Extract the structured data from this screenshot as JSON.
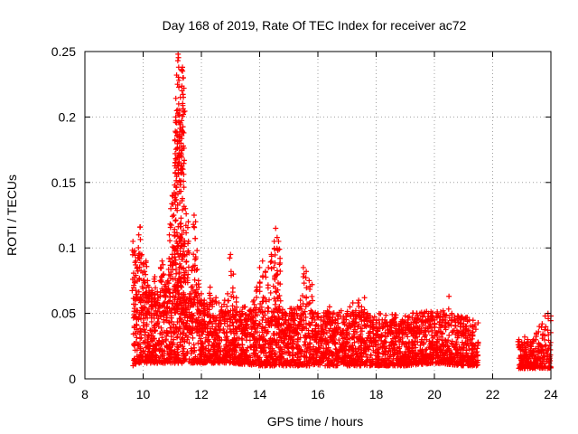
{
  "chart_data": {
    "type": "scatter",
    "title": "Day 168 of 2019, Rate Of TEC Index for receiver ac72",
    "xlabel": "GPS time / hours",
    "ylabel": "ROTI / TECUs",
    "xlim": [
      8,
      24
    ],
    "ylim": [
      0,
      0.25
    ],
    "xticks": [
      8,
      10,
      12,
      14,
      16,
      18,
      20,
      22,
      24
    ],
    "yticks": [
      0,
      0.05,
      0.1,
      0.15,
      0.2,
      0.25
    ],
    "ytick_labels": [
      "0",
      "0.05",
      "0.1",
      "0.15",
      "0.2",
      "0.25"
    ],
    "grid": true,
    "marker": "plus",
    "series": [
      {
        "name": "ROTI",
        "color": "#ff0000",
        "x": [
          9.65,
          9.7,
          9.75,
          9.8,
          9.85,
          9.9,
          9.95,
          10.0,
          10.05,
          10.1,
          10.15,
          10.2,
          10.3,
          10.4,
          10.5,
          10.6,
          10.65,
          10.7,
          10.75,
          10.8,
          10.85,
          10.9,
          10.95,
          11.0,
          11.05,
          11.08,
          11.1,
          11.12,
          11.15,
          11.18,
          11.2,
          11.22,
          11.25,
          11.28,
          11.3,
          11.32,
          11.35,
          11.38,
          11.4,
          11.45,
          11.5,
          11.55,
          11.6,
          11.65,
          11.7,
          11.75,
          11.8,
          11.85,
          11.9,
          11.95,
          12.0,
          12.1,
          12.2,
          12.3,
          12.4,
          12.5,
          12.6,
          12.7,
          12.8,
          12.9,
          13.0,
          13.1,
          13.2,
          13.3,
          13.4,
          13.5,
          13.6,
          13.7,
          13.8,
          13.9,
          14.0,
          14.1,
          14.2,
          14.3,
          14.4,
          14.5,
          14.55,
          14.6,
          14.65,
          14.7,
          14.8,
          14.9,
          15.0,
          15.1,
          15.2,
          15.3,
          15.4,
          15.5,
          15.6,
          15.7,
          15.8,
          15.9,
          16.0,
          16.1,
          16.2,
          16.3,
          16.4,
          16.5,
          16.6,
          16.7,
          16.8,
          16.9,
          17.0,
          17.1,
          17.2,
          17.3,
          17.4,
          17.5,
          17.6,
          17.7,
          17.8,
          17.9,
          18.0,
          18.1,
          18.2,
          18.3,
          18.4,
          18.5,
          18.6,
          18.7,
          18.8,
          18.9,
          19.0,
          19.1,
          19.2,
          19.3,
          19.4,
          19.5,
          19.6,
          19.7,
          19.8,
          19.9,
          20.0,
          20.1,
          20.2,
          20.3,
          20.4,
          20.5,
          20.6,
          20.7,
          20.8,
          20.9,
          21.0,
          21.1,
          21.2,
          21.3,
          21.4,
          21.5,
          22.9,
          23.0,
          23.1,
          23.2,
          23.3,
          23.4,
          23.5,
          23.6,
          23.7,
          23.8,
          23.9,
          24.0
        ],
        "y": [
          0.105,
          0.098,
          0.09,
          0.085,
          0.11,
          0.116,
          0.095,
          0.088,
          0.082,
          0.09,
          0.075,
          0.07,
          0.065,
          0.078,
          0.06,
          0.085,
          0.09,
          0.08,
          0.072,
          0.068,
          0.075,
          0.11,
          0.13,
          0.14,
          0.125,
          0.148,
          0.172,
          0.2,
          0.232,
          0.225,
          0.248,
          0.21,
          0.205,
          0.215,
          0.18,
          0.19,
          0.238,
          0.23,
          0.222,
          0.13,
          0.095,
          0.12,
          0.065,
          0.07,
          0.085,
          0.125,
          0.12,
          0.098,
          0.075,
          0.058,
          0.065,
          0.06,
          0.055,
          0.07,
          0.06,
          0.062,
          0.058,
          0.055,
          0.06,
          0.065,
          0.095,
          0.08,
          0.062,
          0.045,
          0.05,
          0.055,
          0.048,
          0.052,
          0.06,
          0.07,
          0.085,
          0.09,
          0.082,
          0.085,
          0.095,
          0.105,
          0.115,
          0.108,
          0.105,
          0.092,
          0.048,
          0.05,
          0.045,
          0.05,
          0.048,
          0.055,
          0.06,
          0.085,
          0.082,
          0.075,
          0.072,
          0.045,
          0.05,
          0.045,
          0.048,
          0.05,
          0.055,
          0.05,
          0.045,
          0.048,
          0.052,
          0.045,
          0.05,
          0.055,
          0.058,
          0.052,
          0.06,
          0.055,
          0.062,
          0.05,
          0.048,
          0.045,
          0.04,
          0.045,
          0.042,
          0.045,
          0.04,
          0.043,
          0.045,
          0.042,
          0.04,
          0.045,
          0.048,
          0.045,
          0.042,
          0.045,
          0.05,
          0.045,
          0.048,
          0.045,
          0.05,
          0.048,
          0.045,
          0.05,
          0.048,
          0.052,
          0.048,
          0.063,
          0.05,
          0.045,
          0.048,
          0.045,
          0.042,
          0.04,
          0.045,
          0.04,
          0.025,
          0.028,
          0.03,
          0.028,
          0.032,
          0.03,
          0.028,
          0.03,
          0.035,
          0.04,
          0.042,
          0.048,
          0.05,
          0.048
        ],
        "band_x": [
          9.65,
          9.8,
          10.0,
          10.5,
          11.0,
          11.5,
          12.0,
          13.0,
          14.0,
          15.0,
          16.0,
          17.0,
          18.0,
          19.0,
          20.0,
          21.0,
          21.5,
          22.9,
          23.5,
          24.0
        ],
        "band_low": [
          0.01,
          0.012,
          0.012,
          0.012,
          0.012,
          0.012,
          0.012,
          0.012,
          0.01,
          0.01,
          0.01,
          0.01,
          0.01,
          0.01,
          0.012,
          0.01,
          0.01,
          0.008,
          0.008,
          0.008
        ],
        "band_high": [
          0.04,
          0.045,
          0.045,
          0.05,
          0.05,
          0.045,
          0.04,
          0.035,
          0.035,
          0.035,
          0.032,
          0.032,
          0.03,
          0.03,
          0.032,
          0.028,
          0.025,
          0.025,
          0.025,
          0.03
        ],
        "gaps": [
          [
            21.5,
            22.9
          ]
        ]
      }
    ]
  }
}
